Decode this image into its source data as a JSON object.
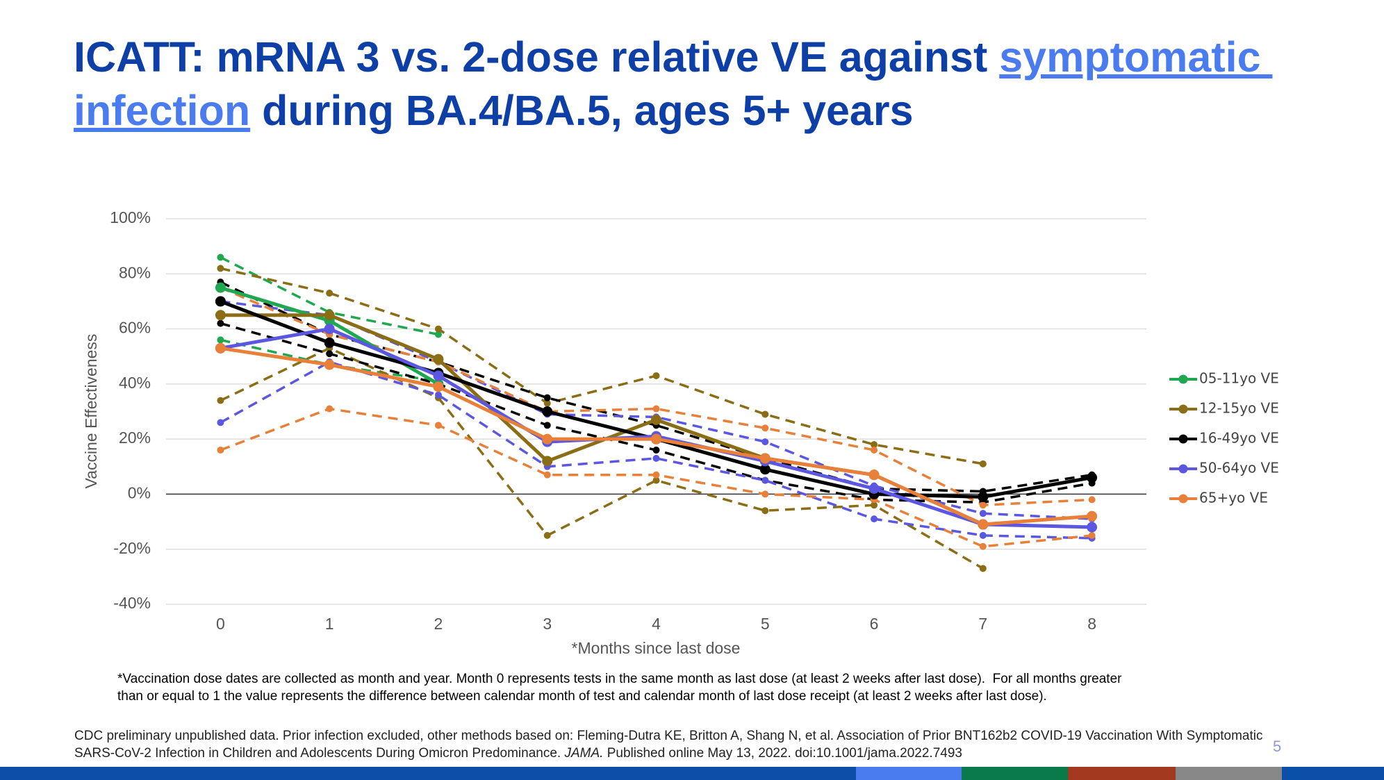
{
  "header": {
    "title": {
      "before": "ICATT: mRNA 3 vs. 2-dose relative VE against ",
      "link": "symptomatic infection",
      "after": " during BA.4/BA.5, ages 5+ years"
    }
  },
  "chart_data": {
    "type": "line",
    "x_label": "*Months since last dose",
    "y_label": "Vaccine Effectiveness",
    "x": [
      0,
      1,
      2,
      3,
      4,
      5,
      6,
      7,
      8
    ],
    "xlim": [
      -0.5,
      8.5
    ],
    "xticks": [
      0,
      1,
      2,
      3,
      4,
      5,
      6,
      7,
      8
    ],
    "ylim": [
      -40,
      100
    ],
    "yticks": [
      {
        "value": -40,
        "label": "-40%"
      },
      {
        "value": -20,
        "label": "-20%"
      },
      {
        "value": 0,
        "label": "0%"
      },
      {
        "value": 20,
        "label": "20%"
      },
      {
        "value": 40,
        "label": "40%"
      },
      {
        "value": 60,
        "label": "60%"
      },
      {
        "value": 80,
        "label": "80%"
      },
      {
        "value": 100,
        "label": "100%"
      }
    ],
    "grid": true,
    "legend": "right",
    "series": [
      {
        "name": "05-11yo VE",
        "color": "#1fa84f",
        "values": [
          75,
          63,
          40,
          null,
          null,
          null,
          null,
          null,
          null
        ],
        "upper": [
          86,
          66,
          58,
          null,
          null,
          null,
          null,
          null,
          null
        ],
        "lower": [
          56,
          47,
          41,
          null,
          null,
          null,
          null,
          null,
          null
        ]
      },
      {
        "name": "12-15yo VE",
        "color": "#8a6d14",
        "values": [
          65,
          65,
          49,
          12,
          27,
          13,
          7,
          -11,
          null
        ],
        "upper": [
          82,
          73,
          60,
          33,
          43,
          29,
          18,
          11,
          null
        ],
        "lower": [
          34,
          53,
          35,
          -15,
          5,
          -6,
          -4,
          -27,
          null
        ]
      },
      {
        "name": "16-49yo VE",
        "color": "#000000",
        "values": [
          70,
          55,
          44,
          30,
          20,
          9,
          0,
          -1,
          6
        ],
        "upper": [
          77,
          58,
          48,
          35,
          25,
          13,
          2,
          1,
          7
        ],
        "lower": [
          62,
          51,
          40,
          25,
          16,
          5,
          -2,
          -3,
          4
        ]
      },
      {
        "name": "50-64yo VE",
        "color": "#5b57e0",
        "values": [
          53,
          60,
          43,
          19,
          21,
          12,
          2,
          -11,
          -12
        ],
        "upper": [
          70,
          65,
          48,
          29,
          28,
          19,
          3,
          -7,
          -9
        ],
        "lower": [
          26,
          48,
          36,
          10,
          13,
          5,
          -9,
          -15,
          -16
        ]
      },
      {
        "name": "65+yo VE",
        "color": "#e8803a",
        "values": [
          53,
          47,
          39,
          20,
          20,
          13,
          7,
          -11,
          -8
        ],
        "upper": [
          75,
          58,
          48,
          30,
          31,
          24,
          16,
          -4,
          -2
        ],
        "lower": [
          16,
          31,
          25,
          7,
          7,
          0,
          -2,
          -19,
          -15
        ]
      }
    ],
    "footnote": [
      "*Vaccination dose dates are collected as month and year. Month 0 represents tests in the same month as last dose (at least 2 weeks after last dose).  For all months greater",
      "than or equal to 1 the value represents the difference between calendar month of test and calendar month of last dose receipt (at least 2 weeks after last dose)."
    ]
  },
  "source": {
    "before": "CDC preliminary unpublished data. Prior infection excluded, other methods based on: Fleming-Dutra KE, Britton A, Shang N, et al. Association of Prior BNT162b2 COVID-19 Vaccination With Symptomatic SARS-CoV-2 Infection in Children and Adolescents During Omicron Predominance. ",
    "journal": "JAMA.",
    "after": " Published online May 13, 2022. doi:10.1001/jama.2022.7493"
  },
  "page_number": "5"
}
